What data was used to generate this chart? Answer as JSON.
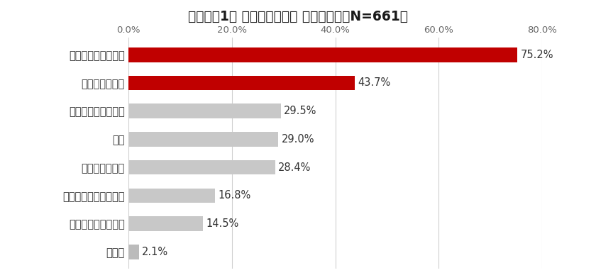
{
  "title_bold": "》グラフ1》 中古住宅の魅力",
  "title": "【グラフ1】 中古住宅の魅力",
  "title_suffix": " （複数回答、N=661）",
  "categories": [
    "手ごろな価格である",
    "立地条件がよい",
    "リフォームができる",
    "広い",
    "早く入居できる",
    "住宅性能が優れている",
    "設備が充実している",
    "その他"
  ],
  "values": [
    75.2,
    43.7,
    29.5,
    29.0,
    28.4,
    16.8,
    14.5,
    2.1
  ],
  "bar_colors": [
    "#c00000",
    "#c00000",
    "#c8c8c8",
    "#c8c8c8",
    "#c8c8c8",
    "#c8c8c8",
    "#c8c8c8",
    "#bbbbbb"
  ],
  "labels": [
    "75.2%",
    "43.7%",
    "29.5%",
    "29.0%",
    "28.4%",
    "16.8%",
    "14.5%",
    "2.1%"
  ],
  "xlim": [
    0,
    80
  ],
  "xticks": [
    0,
    20,
    40,
    60,
    80
  ],
  "xtick_labels": [
    "0.0%",
    "20.0%",
    "40.0%",
    "60.0%",
    "80.0%"
  ],
  "background_color": "#ffffff",
  "bar_height": 0.52,
  "title_fontsize": 13.5,
  "label_fontsize": 10.5,
  "tick_fontsize": 9.5,
  "value_fontsize": 10.5
}
